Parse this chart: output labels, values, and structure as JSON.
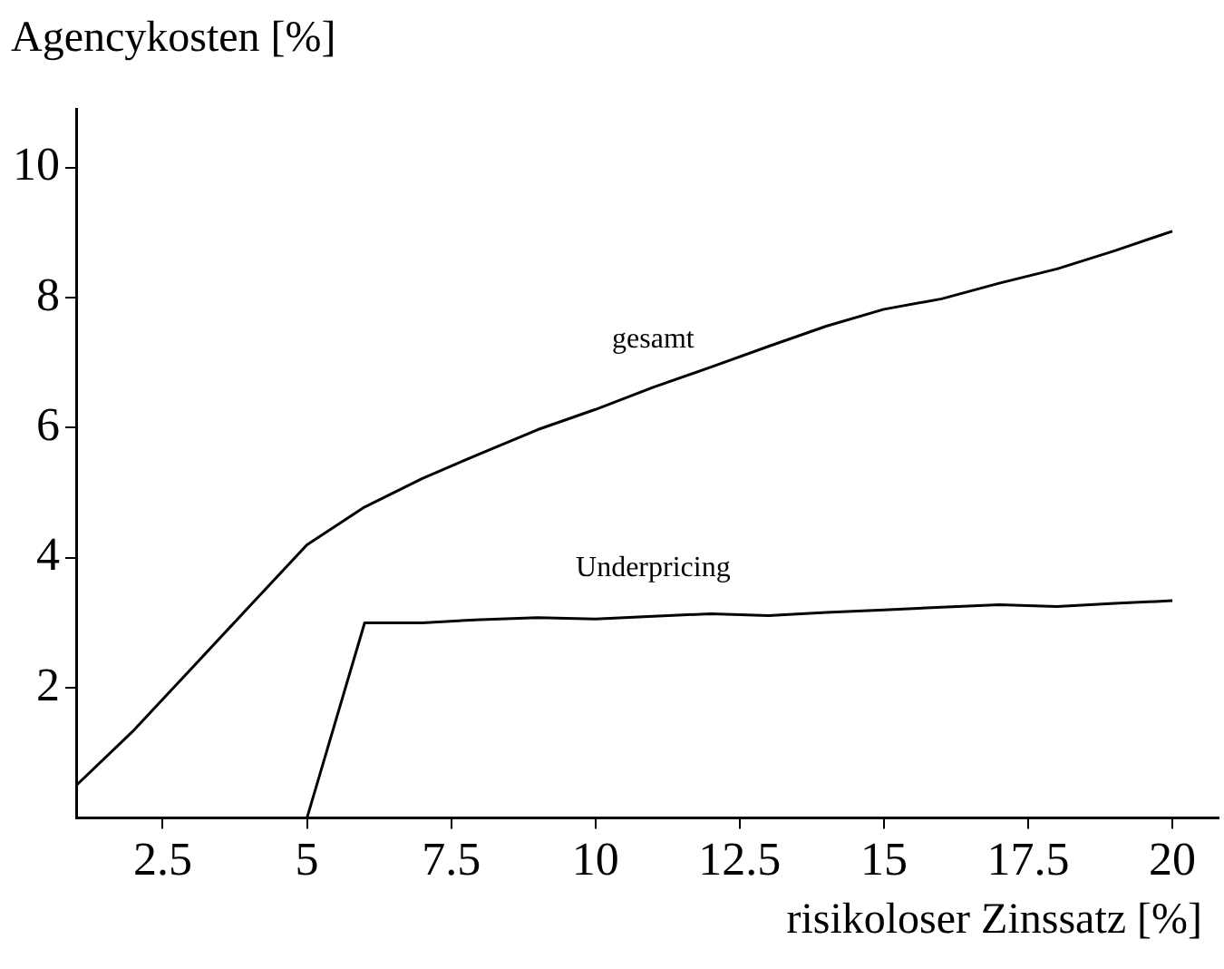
{
  "chart_data": {
    "type": "line",
    "xlabel": "risikoloser Zinssatz [%]",
    "ylabel": "Agencykosten [%]",
    "x": [
      1,
      2,
      3,
      4,
      5,
      6,
      7,
      8,
      9,
      10,
      11,
      12,
      13,
      14,
      15,
      16,
      17,
      18,
      19,
      20
    ],
    "series": [
      {
        "name": "gesamt",
        "color": "#000000",
        "values": [
          0.5,
          1.35,
          2.3,
          3.25,
          4.2,
          4.78,
          5.22,
          5.6,
          5.97,
          6.28,
          6.62,
          6.93,
          7.25,
          7.56,
          7.82,
          7.98,
          8.22,
          8.44,
          8.72,
          9.02
        ]
      },
      {
        "name": "Underpricing",
        "color": "#000000",
        "values": [
          0,
          0,
          0,
          0,
          0,
          3.0,
          3.0,
          3.05,
          3.08,
          3.06,
          3.1,
          3.14,
          3.11,
          3.16,
          3.2,
          3.24,
          3.28,
          3.25,
          3.3,
          3.34
        ]
      }
    ],
    "xlim": [
      1,
      20.8
    ],
    "ylim": [
      0,
      10.9
    ],
    "xticks": [
      2.5,
      5,
      7.5,
      10,
      12.5,
      15,
      17.5,
      20
    ],
    "yticks": [
      2,
      4,
      6,
      8,
      10
    ],
    "grid": false,
    "legend": false,
    "marker": "none",
    "line_style": "solid"
  }
}
